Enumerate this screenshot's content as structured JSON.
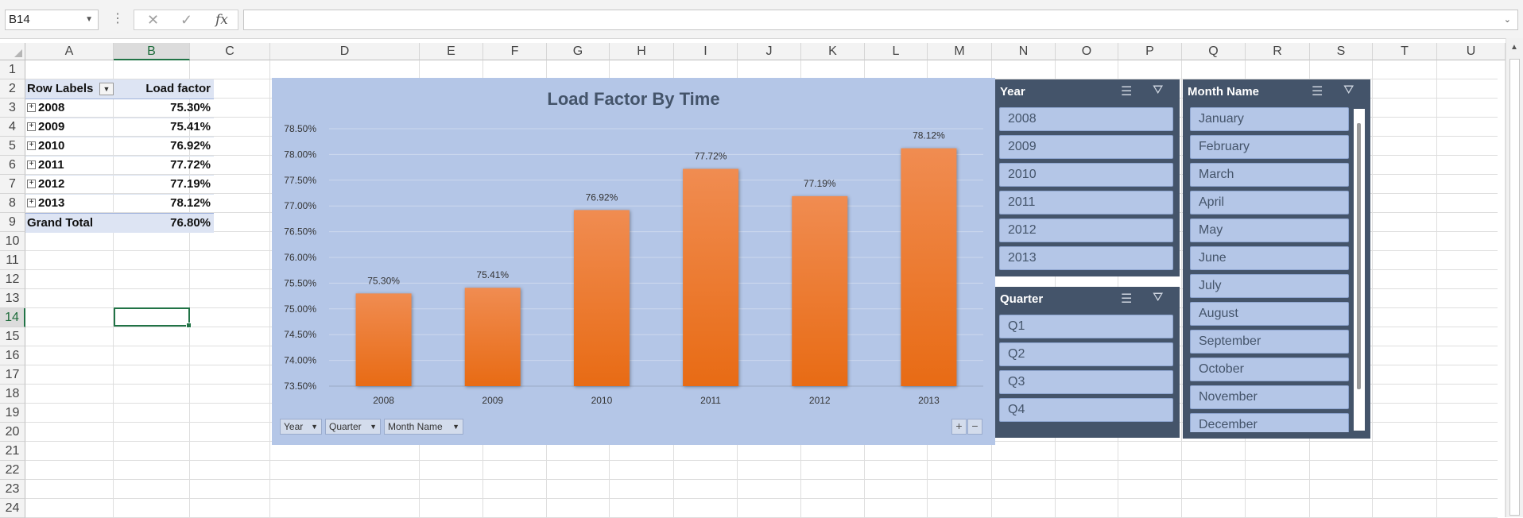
{
  "formula_bar": {
    "name_box": "B14",
    "cancel_icon": "✕",
    "enter_icon": "✓",
    "fx_label": "fx",
    "formula": ""
  },
  "columns": [
    "A",
    "B",
    "C",
    "D",
    "E",
    "F",
    "G",
    "H",
    "I",
    "J",
    "K",
    "L",
    "M",
    "N",
    "O",
    "P",
    "Q",
    "R",
    "S",
    "T",
    "U"
  ],
  "rows": [
    "1",
    "2",
    "3",
    "4",
    "5",
    "6",
    "7",
    "8",
    "9",
    "10",
    "11",
    "12",
    "13",
    "14",
    "15",
    "16",
    "17",
    "18",
    "19",
    "20",
    "21",
    "22",
    "23",
    "24"
  ],
  "selected": {
    "column": "B",
    "row": "14"
  },
  "pivot": {
    "header": {
      "label": "Row Labels",
      "value": "Load factor"
    },
    "rows": [
      {
        "label": "2008",
        "value": "75.30%"
      },
      {
        "label": "2009",
        "value": "75.41%"
      },
      {
        "label": "2010",
        "value": "76.92%"
      },
      {
        "label": "2011",
        "value": "77.72%"
      },
      {
        "label": "2012",
        "value": "77.19%"
      },
      {
        "label": "2013",
        "value": "78.12%"
      }
    ],
    "total": {
      "label": "Grand Total",
      "value": "76.80%"
    }
  },
  "chart_data": {
    "type": "bar",
    "title": "Load Factor By Time",
    "categories": [
      "2008",
      "2009",
      "2010",
      "2011",
      "2012",
      "2013"
    ],
    "values": [
      75.3,
      75.41,
      76.92,
      77.72,
      77.19,
      78.12
    ],
    "data_labels": [
      "75.30%",
      "75.41%",
      "76.92%",
      "77.72%",
      "77.19%",
      "78.12%"
    ],
    "ylim": [
      73.5,
      78.5
    ],
    "yticks": [
      "73.50%",
      "74.00%",
      "74.50%",
      "75.00%",
      "75.50%",
      "76.00%",
      "76.50%",
      "77.00%",
      "77.50%",
      "78.00%",
      "78.50%"
    ],
    "xlabel": "",
    "ylabel": "",
    "grid": true,
    "bar_color": "#ed7d31",
    "background": "#b4c6e7"
  },
  "chart_buttons": {
    "fields": [
      "Year",
      "Quarter",
      "Month Name"
    ],
    "expand": "+",
    "collapse": "−"
  },
  "slicers": {
    "year": {
      "title": "Year",
      "items": [
        "2008",
        "2009",
        "2010",
        "2011",
        "2012",
        "2013"
      ]
    },
    "quarter": {
      "title": "Quarter",
      "items": [
        "Q1",
        "Q2",
        "Q3",
        "Q4"
      ]
    },
    "month": {
      "title": "Month Name",
      "items": [
        "January",
        "February",
        "March",
        "April",
        "May",
        "June",
        "July",
        "August",
        "September",
        "October",
        "November",
        "December"
      ]
    }
  },
  "colors": {
    "slicer_header": "#44546a",
    "slicer_item": "#b4c6e7",
    "selection": "#217346"
  }
}
